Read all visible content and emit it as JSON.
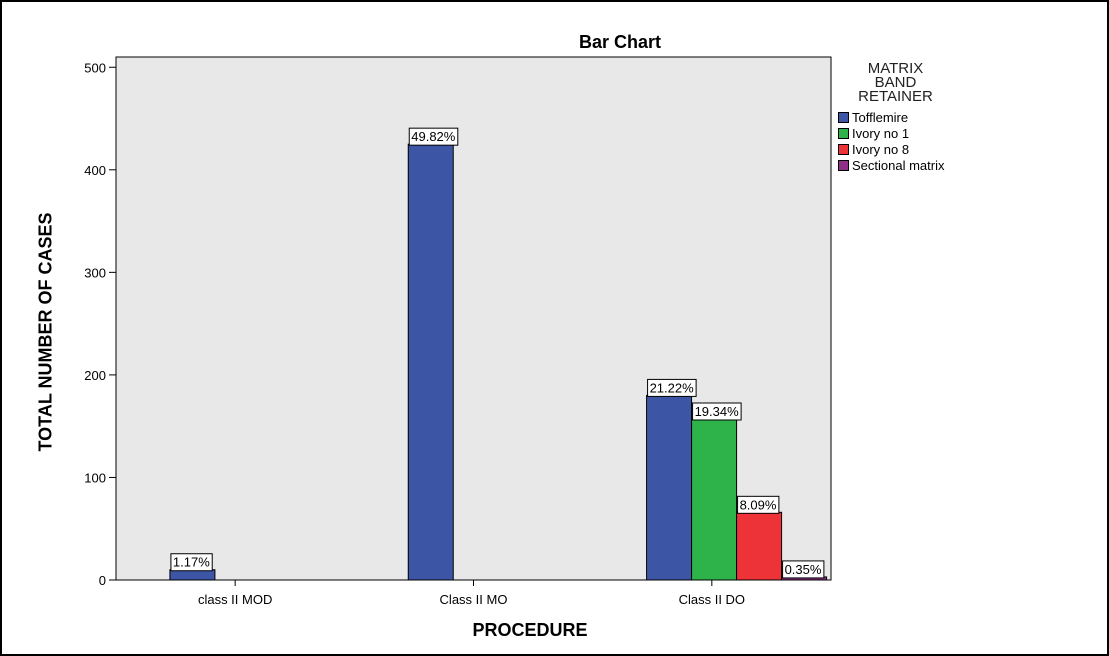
{
  "chart_data": {
    "type": "bar",
    "title": "Bar Chart",
    "xlabel": "PROCEDURE",
    "ylabel": "TOTAL NUMBER OF CASES",
    "ylim": [
      0,
      510
    ],
    "yticks": [
      0,
      100,
      200,
      300,
      400,
      500
    ],
    "categories": [
      "class II MOD",
      "Class II MO",
      "Class II DO"
    ],
    "legend_title": [
      "MATRIX",
      "BAND",
      "RETAINER"
    ],
    "legend_position": "right",
    "grid": false,
    "series": [
      {
        "name": "Tofflemire",
        "color": "#3d55a5",
        "values": [
          10,
          425,
          180
        ],
        "labels": [
          "1.17%",
          "49.82%",
          "21.22%"
        ]
      },
      {
        "name": "Ivory no 1",
        "color": "#2db34a",
        "values": [
          0,
          0,
          157
        ],
        "labels": [
          "",
          "",
          "19.34%"
        ]
      },
      {
        "name": "Ivory no 8",
        "color": "#ee3338",
        "values": [
          0,
          0,
          66
        ],
        "labels": [
          "",
          "",
          "8.09%"
        ]
      },
      {
        "name": "Sectional matrix",
        "color": "#8e2e86",
        "values": [
          0,
          0,
          3
        ],
        "labels": [
          "",
          "",
          "0.35%"
        ]
      }
    ]
  }
}
